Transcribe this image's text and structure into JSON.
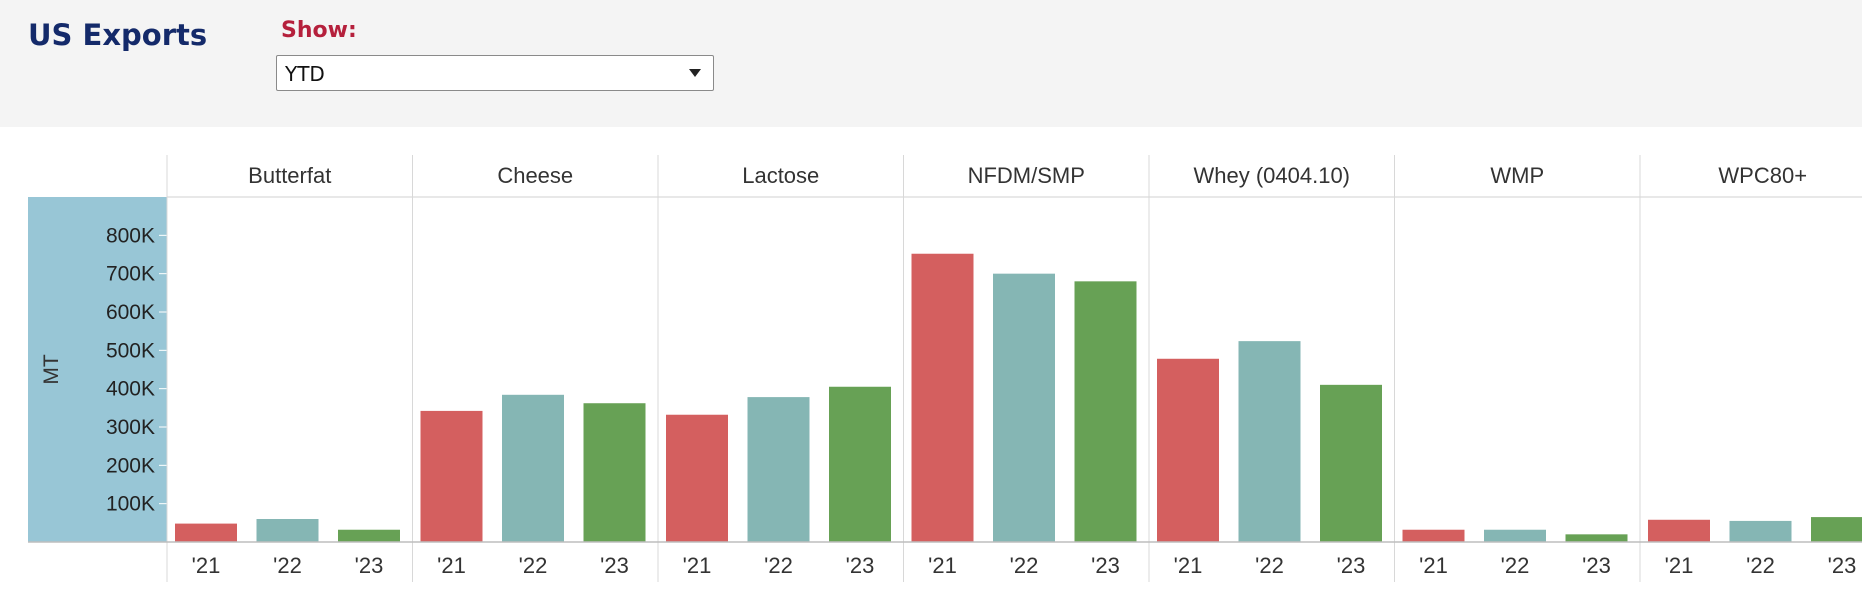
{
  "header": {
    "title": "US Exports"
  },
  "filter": {
    "label": "Show:",
    "selected": "YTD"
  },
  "colors": {
    "y2021": "#d45f5f",
    "y2022": "#85b6b4",
    "y2023": "#67a155",
    "axis_panel": "#98c6d6"
  },
  "chart_data": {
    "type": "bar",
    "ylabel": "MT",
    "ylim": [
      0,
      900000
    ],
    "yticks": [
      100000,
      200000,
      300000,
      400000,
      500000,
      600000,
      700000,
      800000
    ],
    "ytick_labels": [
      "100K",
      "200K",
      "300K",
      "400K",
      "500K",
      "600K",
      "700K",
      "800K"
    ],
    "years": [
      "'21",
      "'22",
      "'23"
    ],
    "categories": [
      "Butterfat",
      "Cheese",
      "Lactose",
      "NFDM/SMP",
      "Whey (0404.10)",
      "WMP",
      "WPC80+"
    ],
    "series": [
      {
        "year": "'21",
        "values": [
          48000,
          342000,
          332000,
          752000,
          478000,
          32000,
          58000
        ]
      },
      {
        "year": "'22",
        "values": [
          60000,
          384000,
          378000,
          700000,
          524000,
          32000,
          55000
        ]
      },
      {
        "year": "'23",
        "values": [
          32000,
          362000,
          405000,
          680000,
          410000,
          20000,
          65000
        ]
      }
    ]
  }
}
